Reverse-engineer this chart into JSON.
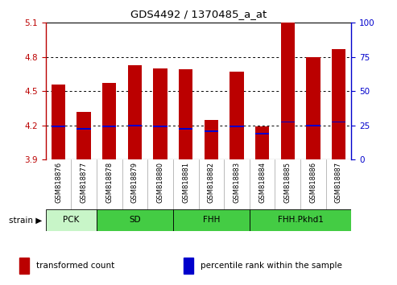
{
  "title": "GDS4492 / 1370485_a_at",
  "samples": [
    "GSM818876",
    "GSM818877",
    "GSM818878",
    "GSM818879",
    "GSM818880",
    "GSM818881",
    "GSM818882",
    "GSM818883",
    "GSM818884",
    "GSM818885",
    "GSM818886",
    "GSM818887"
  ],
  "red_tops": [
    4.56,
    4.32,
    4.57,
    4.73,
    4.7,
    4.69,
    4.25,
    4.67,
    4.19,
    5.1,
    4.8,
    4.87
  ],
  "blue_vals": [
    4.19,
    4.17,
    4.19,
    4.2,
    4.19,
    4.17,
    4.15,
    4.19,
    4.13,
    4.23,
    4.2,
    4.23
  ],
  "bar_bottom": 3.9,
  "ylim_left": [
    3.9,
    5.1
  ],
  "ylim_right": [
    0,
    100
  ],
  "yticks_left": [
    3.9,
    4.2,
    4.5,
    4.8,
    5.1
  ],
  "yticks_right": [
    0,
    25,
    50,
    75,
    100
  ],
  "red_color": "#bb0000",
  "blue_color": "#0000cc",
  "bar_width": 0.55,
  "strain_groups": [
    {
      "label": "PCK",
      "indices": [
        0,
        1
      ],
      "color": "#c8f5c8"
    },
    {
      "label": "SD",
      "indices": [
        2,
        3,
        4
      ],
      "color": "#44cc44"
    },
    {
      "label": "FHH",
      "indices": [
        5,
        6,
        7
      ],
      "color": "#44cc44"
    },
    {
      "label": "FHH.Pkhd1",
      "indices": [
        8,
        9,
        10,
        11
      ],
      "color": "#44cc44"
    }
  ],
  "tick_bg_color": "#d0d0d0",
  "plot_bg_color": "#ffffff",
  "legend_labels": [
    "transformed count",
    "percentile rank within the sample"
  ],
  "dotted_lines": [
    4.2,
    4.5,
    4.8
  ]
}
